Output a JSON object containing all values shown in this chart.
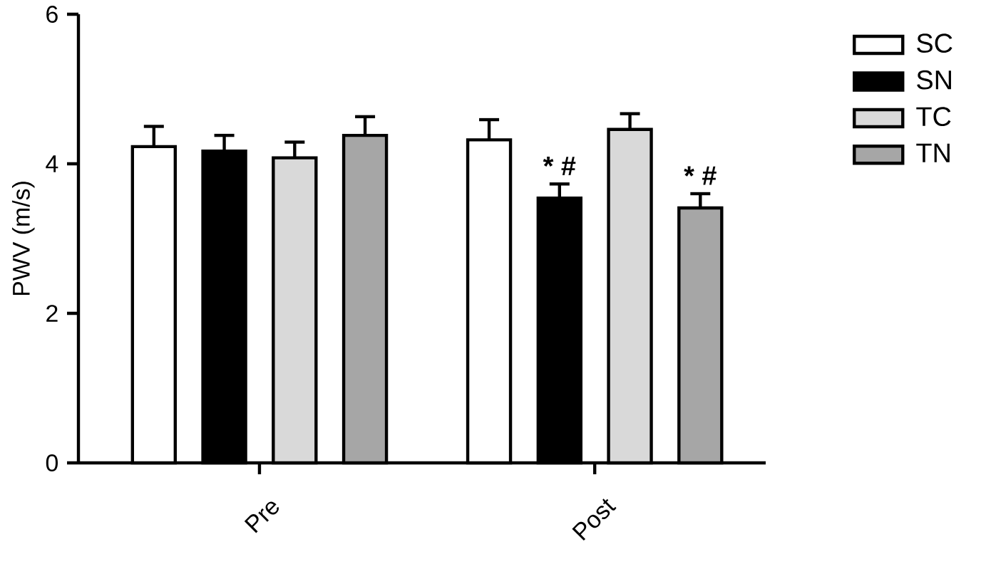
{
  "chart_data": {
    "type": "bar",
    "ylabel": "PWV (m/s)",
    "categories": [
      "Pre",
      "Post"
    ],
    "series": [
      {
        "name": "SC",
        "color": "#ffffff",
        "values": [
          4.23,
          4.32
        ],
        "errors": [
          0.27,
          0.27
        ]
      },
      {
        "name": "SN",
        "color": "#000000",
        "values": [
          4.17,
          3.54
        ],
        "errors": [
          0.21,
          0.19
        ]
      },
      {
        "name": "TC",
        "color": "#d9d9d9",
        "values": [
          4.08,
          4.46
        ],
        "errors": [
          0.21,
          0.21
        ]
      },
      {
        "name": "TN",
        "color": "#a6a6a6",
        "values": [
          4.38,
          3.41
        ],
        "errors": [
          0.25,
          0.19
        ]
      }
    ],
    "ylim": [
      0,
      6
    ],
    "yticks": [
      0,
      2,
      4,
      6
    ],
    "grid": false,
    "legend": "right",
    "annotations": [
      "* #",
      "* #"
    ]
  }
}
